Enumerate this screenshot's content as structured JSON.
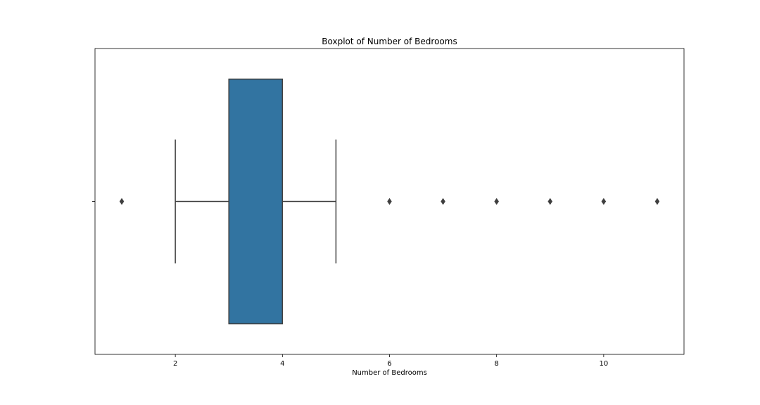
{
  "chart_data": {
    "type": "boxplot",
    "orientation": "horizontal",
    "title": "Boxplot of Number of Bedrooms",
    "xlabel": "Number of Bedrooms",
    "ylabel": "",
    "xlim": [
      0.5,
      11.5
    ],
    "xticks": [
      2,
      4,
      6,
      8,
      10
    ],
    "grid": false,
    "box": {
      "whisker_low": 2,
      "q1": 3,
      "median": 3,
      "q3": 4,
      "whisker_high": 5,
      "fill_color": "#3274a1",
      "edge_color": "#3f3f3f"
    },
    "outliers": [
      1,
      6,
      7,
      8,
      9,
      10,
      11
    ]
  }
}
